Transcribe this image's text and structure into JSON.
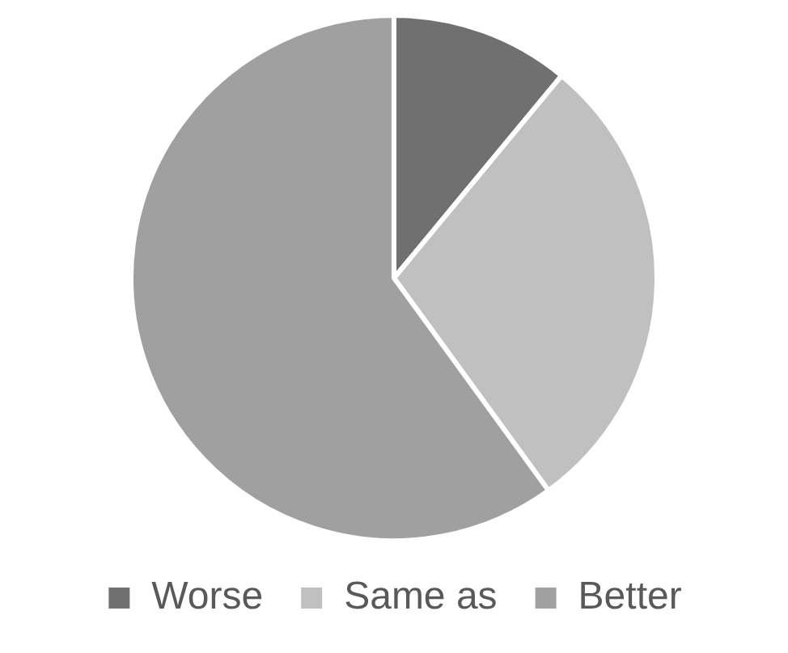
{
  "chart_data": {
    "type": "pie",
    "categories": [
      "Worse",
      "Same as",
      "Better"
    ],
    "values": [
      11,
      29,
      60
    ],
    "colors": [
      "#707070",
      "#c0c0c0",
      "#a0a0a0"
    ],
    "legend": "bottom"
  }
}
